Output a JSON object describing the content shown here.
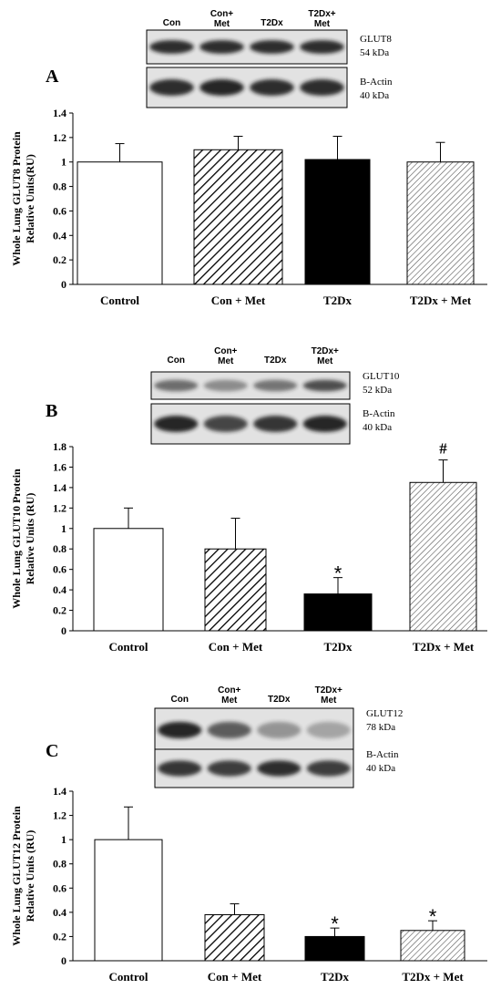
{
  "chart_data": [
    {
      "type": "bar",
      "panel": "A",
      "categories": [
        "Control",
        "Con + Met",
        "T2Dx",
        "T2Dx + Met"
      ],
      "values": [
        1.0,
        1.1,
        1.02,
        1.0
      ],
      "errors": [
        0.15,
        0.11,
        0.19,
        0.16
      ],
      "ylabel_line1": "Whole Lung GLUT8 Protein",
      "ylabel_line2": "Relative Units(RU)",
      "ylim": [
        0,
        1.4
      ],
      "yticks": [
        "0",
        "0.2",
        "0.4",
        "0.6",
        "0.8",
        "1",
        "1.2",
        "1.4"
      ],
      "significance": [
        "",
        "",
        "",
        ""
      ],
      "blot": {
        "lanes": [
          "Con",
          "Con+\nMet",
          "T2Dx",
          "T2Dx+\nMet"
        ],
        "target": "GLUT8",
        "target_kda": "54 kDa",
        "control": "B-Actin",
        "control_kda": "40 kDa"
      }
    },
    {
      "type": "bar",
      "panel": "B",
      "categories": [
        "Control",
        "Con + Met",
        "T2Dx",
        "T2Dx + Met"
      ],
      "values": [
        1.0,
        0.8,
        0.36,
        1.45
      ],
      "errors": [
        0.2,
        0.3,
        0.16,
        0.22
      ],
      "ylabel_line1": "Whole Lung GLUT10 Protein",
      "ylabel_line2": "Relative Units (RU)",
      "ylim": [
        0,
        1.8
      ],
      "yticks": [
        "0",
        "0.2",
        "0.4",
        "0.6",
        "0.8",
        "1",
        "1.2",
        "1.4",
        "1.6",
        "1.8"
      ],
      "significance": [
        "",
        "",
        "*",
        "#"
      ],
      "blot": {
        "lanes": [
          "Con",
          "Con+\nMet",
          "T2Dx",
          "T2Dx+\nMet"
        ],
        "target": "GLUT10",
        "target_kda": "52 kDa",
        "control": "B-Actin",
        "control_kda": "40 kDa"
      }
    },
    {
      "type": "bar",
      "panel": "C",
      "categories": [
        "Control",
        "Con + Met",
        "T2Dx",
        "T2Dx + Met"
      ],
      "values": [
        1.0,
        0.38,
        0.2,
        0.25
      ],
      "errors": [
        0.27,
        0.09,
        0.07,
        0.08
      ],
      "ylabel_line1": "Whole Lung GLUT12 Protein",
      "ylabel_line2": "Relative Units (RU)",
      "ylim": [
        0,
        1.4
      ],
      "yticks": [
        "0",
        "0.2",
        "0.4",
        "0.6",
        "0.8",
        "1",
        "1.2",
        "1.4"
      ],
      "significance": [
        "",
        "",
        "*",
        "*"
      ],
      "blot": {
        "lanes": [
          "Con",
          "Con+\nMet",
          "T2Dx",
          "T2Dx+\nMet"
        ],
        "target": "GLUT12",
        "target_kda": "78 kDa",
        "control": "B-Actin",
        "control_kda": "40 kDa"
      }
    }
  ],
  "styles": {
    "bar_fills": [
      "white",
      "hatch-dense",
      "black",
      "hatch-light"
    ],
    "bar_stroke": "#000000",
    "blot_background": "#e2e2e2",
    "band_color": "#1a1a1a"
  }
}
